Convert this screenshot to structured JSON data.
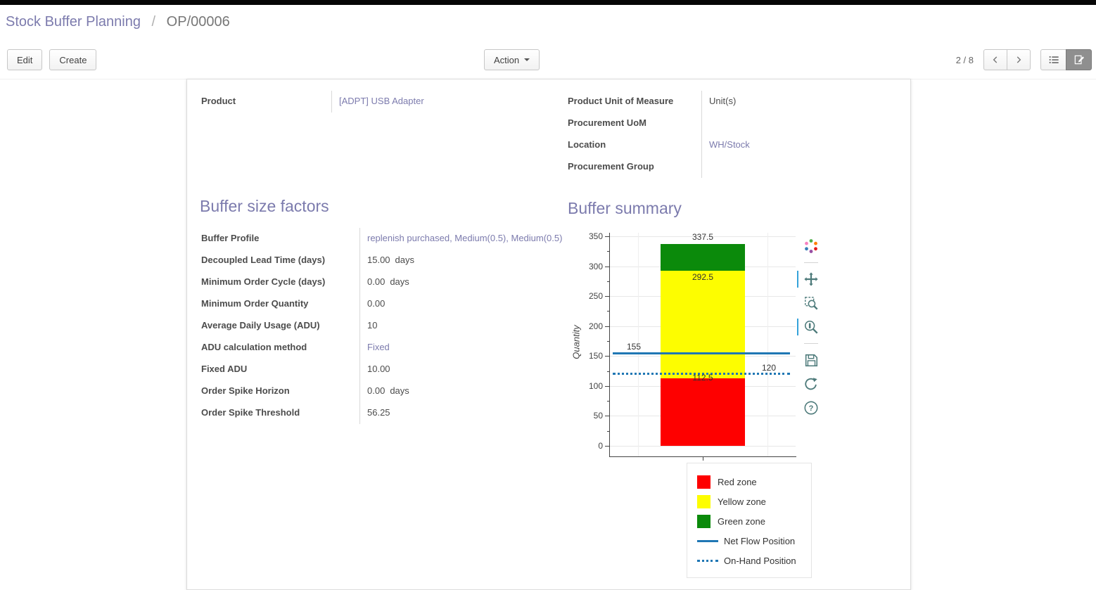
{
  "breadcrumb": {
    "title": "Stock Buffer Planning",
    "separator": "/",
    "record": "OP/00006"
  },
  "control_panel": {
    "edit_label": "Edit",
    "create_label": "Create",
    "action_label": "Action",
    "pager": "2 / 8"
  },
  "form": {
    "product_label": "Product",
    "product_value": "[ADPT] USB Adapter",
    "right_fields": [
      {
        "label": "Product Unit of Measure",
        "value": "Unit(s)",
        "link": false
      },
      {
        "label": "Procurement UoM",
        "value": "",
        "link": false
      },
      {
        "label": "Location",
        "value": "WH/Stock",
        "link": true
      },
      {
        "label": "Procurement Group",
        "value": "",
        "link": false
      }
    ],
    "factors_title": "Buffer size factors",
    "factors_rows": [
      {
        "label": "Buffer Profile",
        "value": "replenish purchased, Medium(0.5), Medium(0.5)",
        "suffix": "",
        "link": true
      },
      {
        "label": "Decoupled Lead Time (days)",
        "value": "15.00",
        "suffix": "days",
        "link": false
      },
      {
        "label": "Minimum Order Cycle (days)",
        "value": "0.00",
        "suffix": "days",
        "link": false
      },
      {
        "label": "Minimum Order Quantity",
        "value": "0.00",
        "suffix": "",
        "link": false
      },
      {
        "label": "Average Daily Usage (ADU)",
        "value": "10",
        "suffix": "",
        "link": false
      },
      {
        "label": "ADU calculation method",
        "value": "Fixed",
        "suffix": "",
        "link": true
      },
      {
        "label": "Fixed ADU",
        "value": "10.00",
        "suffix": "",
        "link": false
      },
      {
        "label": "Order Spike Horizon",
        "value": "0.00",
        "suffix": "days",
        "link": false
      },
      {
        "label": "Order Spike Threshold",
        "value": "56.25",
        "suffix": "",
        "link": false
      }
    ],
    "summary_title": "Buffer summary"
  },
  "chart_data": {
    "type": "bar",
    "title": "Buffer summary",
    "ylabel": "Quantity",
    "ylim": [
      0,
      350
    ],
    "yticks": [
      0,
      50,
      100,
      150,
      200,
      250,
      300,
      350
    ],
    "grid": true,
    "bar_segments": [
      {
        "name": "Red zone",
        "from": 0,
        "to": 112.5,
        "color": "#fe0000"
      },
      {
        "name": "Yellow zone",
        "from": 112.5,
        "to": 292.5,
        "color": "#fdfd00"
      },
      {
        "name": "Green zone",
        "from": 292.5,
        "to": 337.5,
        "color": "#0b8a0b"
      }
    ],
    "lines": [
      {
        "name": "Net Flow Position",
        "value": 155,
        "style": "solid",
        "color": "#1f77b4"
      },
      {
        "name": "On-Hand Position",
        "value": 120,
        "style": "dotted",
        "color": "#1f77b4"
      }
    ],
    "annotations": [
      {
        "text": "337.5",
        "value": 337.5,
        "anchor": "center",
        "dy": -17
      },
      {
        "text": "292.5",
        "value": 292.5,
        "anchor": "center",
        "dy": 2
      },
      {
        "text": "155",
        "value": 155,
        "anchor": "left",
        "dy": -16
      },
      {
        "text": "112.5",
        "value": 112.5,
        "anchor": "center",
        "dy": -8
      },
      {
        "text": "120",
        "value": 120,
        "anchor": "right",
        "dy": -16
      }
    ],
    "legend": [
      {
        "label": "Red zone",
        "swatch": "box",
        "color": "#fe0000"
      },
      {
        "label": "Yellow zone",
        "swatch": "box",
        "color": "#fdfd00"
      },
      {
        "label": "Green zone",
        "swatch": "box",
        "color": "#0b8a0b"
      },
      {
        "label": "Net Flow Position",
        "swatch": "line",
        "color": "#1f77b4"
      },
      {
        "label": "On-Hand Position",
        "swatch": "dotted",
        "color": "#1f77b4"
      }
    ],
    "legend_position": "bottom-right",
    "toolbar_tools": [
      "bokeh-logo",
      "pan",
      "box-zoom",
      "wheel-zoom",
      "save",
      "reset",
      "help"
    ],
    "active_tools": [
      "pan",
      "wheel-zoom"
    ]
  }
}
